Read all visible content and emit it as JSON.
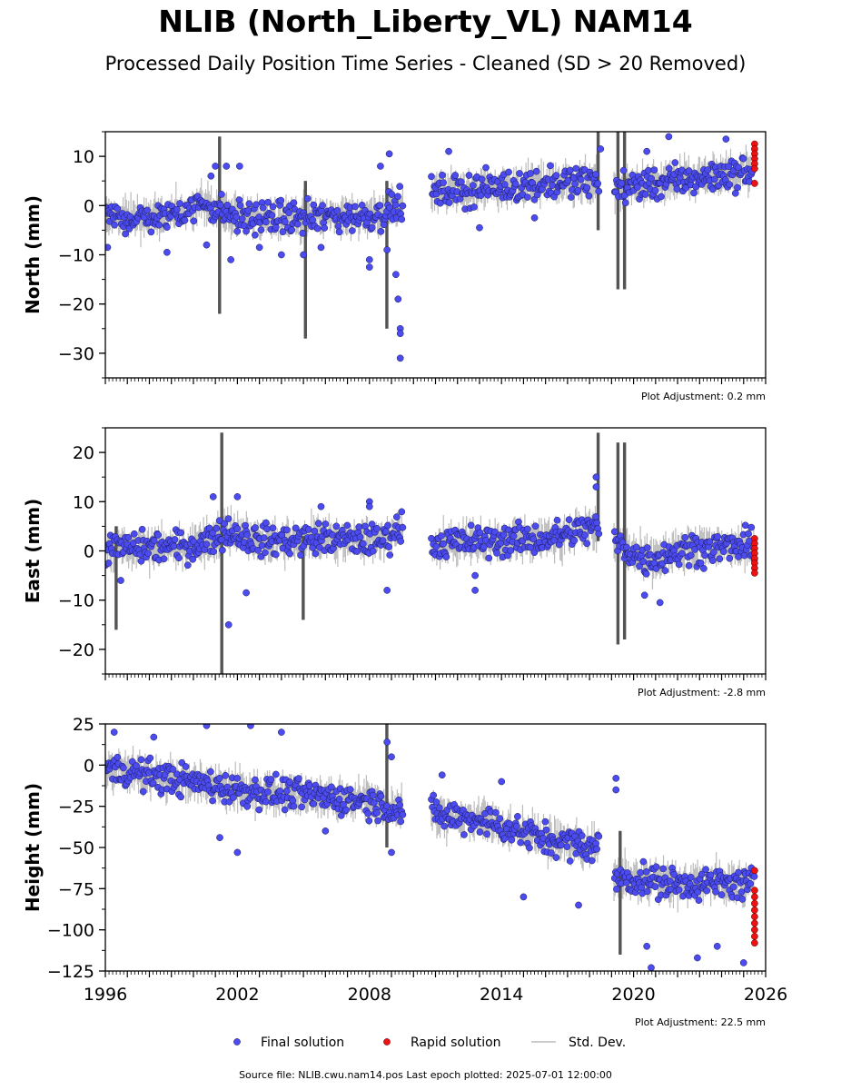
{
  "title": "NLIB (North_Liberty_VL) NAM14",
  "subtitle": "Processed Daily Position Time Series - Cleaned (SD > 20 Removed)",
  "footer": "Source file: NLIB.cwu.nam14.pos  Last epoch plotted: 2025-07-01 12:00:00",
  "colors": {
    "final": "#4b4bf0",
    "rapid": "#ee1111",
    "stddev": "#bbbbbb",
    "edge": "#1a1a55"
  },
  "chart_data": [
    {
      "type": "scatter",
      "ylabel": "North (mm)",
      "ylim": [
        -35,
        15
      ],
      "yticks": [
        10,
        0,
        -10,
        -20,
        -30
      ],
      "ytick_labels": [
        "10",
        "0",
        "−10",
        "−20",
        "−30"
      ],
      "xlim": [
        1996,
        2026
      ],
      "adjustment": "Plot Adjustment: 0.2 mm",
      "final_segments": [
        [
          1996.0,
          -2.5
        ],
        [
          1998.5,
          -2.5
        ],
        [
          2000.5,
          0.5
        ],
        [
          2002.0,
          -2.5
        ],
        [
          2005.0,
          -2.5
        ],
        [
          2008.0,
          -2.0
        ],
        [
          2009.4,
          0.0
        ],
        [
          2010.8,
          2.5
        ],
        [
          2013.0,
          3.5
        ],
        [
          2016.0,
          4.5
        ],
        [
          2018.4,
          5.0
        ],
        [
          2019.1,
          3.5
        ],
        [
          2022.0,
          5.0
        ],
        [
          2025.4,
          7.0
        ]
      ],
      "final_outliers": [
        [
          1996.1,
          -8.5
        ],
        [
          1998.8,
          -9.5
        ],
        [
          2000.6,
          -8.0
        ],
        [
          2000.8,
          6.0
        ],
        [
          2001.0,
          8.0
        ],
        [
          2001.5,
          8.0
        ],
        [
          2001.7,
          -11.0
        ],
        [
          2002.1,
          8.0
        ],
        [
          2003.0,
          -8.5
        ],
        [
          2004.0,
          -10.0
        ],
        [
          2005.0,
          -10.0
        ],
        [
          2005.8,
          -8.5
        ],
        [
          2008.0,
          -11.0
        ],
        [
          2008.0,
          -12.5
        ],
        [
          2008.5,
          8.0
        ],
        [
          2008.8,
          -9.0
        ],
        [
          2008.9,
          10.5
        ],
        [
          2009.2,
          -14.0
        ],
        [
          2009.3,
          -19.0
        ],
        [
          2009.4,
          -25.0
        ],
        [
          2009.4,
          -26.0
        ],
        [
          2009.4,
          -31.0
        ],
        [
          2011.6,
          11.0
        ],
        [
          2013.0,
          -4.5
        ],
        [
          2015.5,
          -2.5
        ],
        [
          2018.5,
          11.5
        ],
        [
          2020.6,
          11.0
        ],
        [
          2021.6,
          14.0
        ],
        [
          2024.2,
          13.5
        ]
      ],
      "rapid": [
        [
          2025.5,
          12.5
        ],
        [
          2025.5,
          11.5
        ],
        [
          2025.5,
          10.5
        ],
        [
          2025.5,
          9.5
        ],
        [
          2025.5,
          8.5
        ],
        [
          2025.5,
          7.5
        ],
        [
          2025.5,
          4.5
        ]
      ],
      "stddev_spikes": [
        [
          2018.4,
          -5.0,
          15.0
        ],
        [
          2019.3,
          -17.0,
          15.0
        ],
        [
          2019.6,
          -17.0,
          15.0
        ],
        [
          2001.2,
          -22.0,
          14.0
        ],
        [
          2005.1,
          -27.0,
          5.0
        ],
        [
          2008.8,
          -25.0,
          5.0
        ]
      ]
    },
    {
      "type": "scatter",
      "ylabel": "East (mm)",
      "ylim": [
        -25,
        25
      ],
      "yticks": [
        20,
        10,
        0,
        -10,
        -20
      ],
      "ytick_labels": [
        "20",
        "10",
        "0",
        "−10",
        "−20"
      ],
      "xlim": [
        1996,
        2026
      ],
      "adjustment": "Plot Adjustment: -2.8 mm",
      "final_segments": [
        [
          1996.0,
          0.5
        ],
        [
          2000.0,
          1.0
        ],
        [
          2001.5,
          4.0
        ],
        [
          2003.0,
          2.0
        ],
        [
          2006.0,
          2.5
        ],
        [
          2008.5,
          2.0
        ],
        [
          2009.5,
          5.0
        ],
        [
          2010.8,
          1.5
        ],
        [
          2013.0,
          2.0
        ],
        [
          2016.0,
          2.5
        ],
        [
          2018.4,
          5.0
        ],
        [
          2019.1,
          2.0
        ],
        [
          2020.5,
          -2.0
        ],
        [
          2022.5,
          0.5
        ],
        [
          2025.5,
          1.0
        ]
      ],
      "final_outliers": [
        [
          1996.7,
          -6.0
        ],
        [
          2000.9,
          11.0
        ],
        [
          2001.6,
          -15.0
        ],
        [
          2002.0,
          11.0
        ],
        [
          2002.4,
          -8.5
        ],
        [
          2005.8,
          9.0
        ],
        [
          2008.0,
          10.0
        ],
        [
          2008.0,
          9.0
        ],
        [
          2008.8,
          -8.0
        ],
        [
          2012.8,
          -5.0
        ],
        [
          2012.8,
          -8.0
        ],
        [
          2018.3,
          15.0
        ],
        [
          2018.3,
          13.0
        ],
        [
          2020.5,
          -9.0
        ],
        [
          2021.2,
          -10.5
        ]
      ],
      "rapid": [
        [
          2025.5,
          2.5
        ],
        [
          2025.5,
          1.5
        ],
        [
          2025.5,
          0.5
        ],
        [
          2025.5,
          -0.5
        ],
        [
          2025.5,
          -1.5
        ],
        [
          2025.5,
          -2.5
        ],
        [
          2025.5,
          -3.5
        ],
        [
          2025.5,
          -4.5
        ]
      ],
      "stddev_spikes": [
        [
          2001.3,
          -25.0,
          24.0
        ],
        [
          2018.4,
          2.0,
          24.0
        ],
        [
          2019.3,
          -19.0,
          22.0
        ],
        [
          2019.6,
          -18.0,
          22.0
        ],
        [
          1996.5,
          -16.0,
          5.0
        ],
        [
          2005.0,
          -14.0,
          3.0
        ]
      ]
    },
    {
      "type": "scatter",
      "ylabel": "Height (mm)",
      "ylim": [
        -125,
        25
      ],
      "yticks": [
        25,
        0,
        -25,
        -50,
        -75,
        -100,
        -125
      ],
      "ytick_labels": [
        "25",
        "0",
        "−25",
        "−50",
        "−75",
        "−100",
        "−125"
      ],
      "xlim": [
        1996,
        2026
      ],
      "xticks": [
        1996,
        2002,
        2008,
        2014,
        2020,
        2026
      ],
      "adjustment": "Plot Adjustment: 22.5 mm",
      "final_segments": [
        [
          1996.0,
          -2.0
        ],
        [
          1999.0,
          -8.0
        ],
        [
          2002.0,
          -15.0
        ],
        [
          2005.0,
          -18.0
        ],
        [
          2008.0,
          -22.0
        ],
        [
          2009.5,
          -28.0
        ],
        [
          2010.8,
          -30.0
        ],
        [
          2013.0,
          -33.0
        ],
        [
          2016.0,
          -45.0
        ],
        [
          2018.4,
          -50.0
        ],
        [
          2019.1,
          -68.0
        ],
        [
          2022.0,
          -72.0
        ],
        [
          2025.5,
          -72.0
        ]
      ],
      "final_outliers": [
        [
          1996.4,
          20.0
        ],
        [
          1998.2,
          17.0
        ],
        [
          2000.6,
          24.0
        ],
        [
          2002.6,
          24.0
        ],
        [
          2004.0,
          20.0
        ],
        [
          2002.0,
          -53.0
        ],
        [
          2001.2,
          -44.0
        ],
        [
          2006.0,
          -40.0
        ],
        [
          2008.8,
          14.0
        ],
        [
          2009.0,
          5.0
        ],
        [
          2009.0,
          -53.0
        ],
        [
          2011.3,
          -6.0
        ],
        [
          2014.0,
          -10.0
        ],
        [
          2015.0,
          -80.0
        ],
        [
          2017.5,
          -85.0
        ],
        [
          2019.2,
          -8.0
        ],
        [
          2019.2,
          -15.0
        ],
        [
          2020.6,
          -110.0
        ],
        [
          2020.8,
          -123.0
        ],
        [
          2022.9,
          -117.0
        ],
        [
          2023.8,
          -110.0
        ],
        [
          2025.0,
          -120.0
        ]
      ],
      "rapid": [
        [
          2025.5,
          -64.0
        ],
        [
          2025.5,
          -76.0
        ],
        [
          2025.5,
          -80.0
        ],
        [
          2025.5,
          -84.0
        ],
        [
          2025.5,
          -88.0
        ],
        [
          2025.5,
          -92.0
        ],
        [
          2025.5,
          -96.0
        ],
        [
          2025.5,
          -100.0
        ],
        [
          2025.5,
          -104.0
        ],
        [
          2025.5,
          -108.0
        ]
      ],
      "stddev_spikes": [
        [
          2008.8,
          -50.0,
          25.0
        ],
        [
          2019.4,
          -115.0,
          -40.0
        ]
      ]
    }
  ],
  "legend": {
    "placement": "bottom-center",
    "entries": [
      {
        "label": "Final solution",
        "kind": "final"
      },
      {
        "label": "Rapid solution",
        "kind": "rapid"
      },
      {
        "label": "Std. Dev.",
        "kind": "stddev"
      }
    ]
  }
}
